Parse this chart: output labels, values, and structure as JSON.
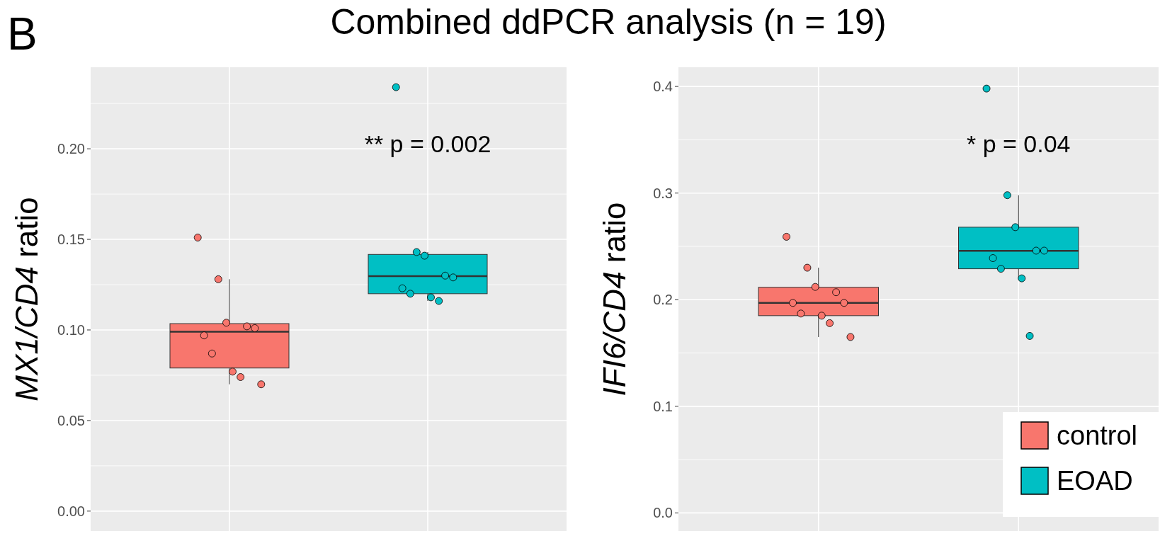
{
  "chart_data": [
    {
      "type": "box",
      "title": "Combined ddPCR analysis (n = 19)",
      "ylabel": "MX1/CD4 ratio",
      "categories": [
        null,
        null
      ],
      "tick_labels": "y",
      "ylim": [
        -0.011,
        0.245
      ],
      "yticks": [
        {
          "value": 0,
          "label": "0.00"
        },
        {
          "value": 0.05,
          "label": "0.05"
        },
        {
          "value": 0.1,
          "label": "0.10"
        },
        {
          "value": 0.15,
          "label": "0.15"
        },
        {
          "value": 0.2,
          "label": "0.20"
        }
      ],
      "grid": true,
      "legend": false,
      "annotations": [
        "B",
        "** p = 0.002"
      ],
      "series": [
        {
          "color": "#f8766d",
          "boxes": [
            {
              "low": 0.07,
              "q1": 0.079,
              "median": 0.099,
              "q3": 0.1035,
              "high": 0.128
            },
            null
          ]
        },
        {
          "color": "#00bfc4",
          "boxes": [
            null,
            {
              "low": 0.116,
              "q1": 0.12,
              "median": 0.1297,
              "q3": 0.1417,
              "high": 0.143
            }
          ]
        },
        {
          "type": "scatter",
          "colors": [
            "#f8766d",
            "#00bfc4"
          ],
          "values": [
            0.151,
            0.234
          ]
        },
        {
          "type": "scatter",
          "colors": [
            "#f8766d",
            "#00bfc4"
          ],
          "values": [
            0.128,
            0.143
          ]
        },
        {
          "type": "scatter",
          "colors": [
            "#f8766d",
            "#00bfc4"
          ],
          "values": [
            0.104,
            0.141
          ]
        },
        {
          "type": "scatter",
          "colors": [
            "#f8766d",
            "#00bfc4"
          ],
          "values": [
            0.102,
            0.13
          ]
        },
        {
          "type": "scatter",
          "colors": [
            "#f8766d",
            "#00bfc4"
          ],
          "values": [
            0.101,
            0.129
          ]
        },
        {
          "type": "scatter",
          "colors": [
            "#f8766d",
            "#00bfc4"
          ],
          "values": [
            0.097,
            0.123
          ]
        },
        {
          "type": "scatter",
          "colors": [
            "#f8766d",
            "#00bfc4"
          ],
          "values": [
            0.087,
            0.12
          ]
        },
        {
          "type": "scatter",
          "colors": [
            "#f8766d",
            "#00bfc4"
          ],
          "values": [
            0.077,
            0.118
          ]
        },
        {
          "type": "scatter",
          "colors": [
            "#f8766d",
            "#00bfc4"
          ],
          "values": [
            0.074,
            0.116
          ]
        },
        {
          "type": "scatter",
          "color": "#f8766d",
          "values": [
            0.07,
            null
          ]
        }
      ]
    },
    {
      "type": "box",
      "ylabel": "IFI6/CD4 ratio",
      "categories": [
        null,
        null
      ],
      "tick_labels": "y",
      "ylim": [
        -0.017,
        0.418
      ],
      "yticks": [
        {
          "value": 0,
          "label": "0.0"
        },
        {
          "value": 0.1,
          "label": "0.1"
        },
        {
          "value": 0.2,
          "label": "0.2"
        },
        {
          "value": 0.3,
          "label": "0.3"
        },
        {
          "value": 0.4,
          "label": "0.4"
        }
      ],
      "grid": true,
      "legend": "bottom right",
      "annotations": [
        "* p = 0.04"
      ],
      "series": [
        {
          "name": "control",
          "color": "#f8766d",
          "boxes": [
            {
              "low": 0.165,
              "q1": 0.185,
              "median": 0.197,
              "q3": 0.2116,
              "high": 0.23
            },
            null
          ]
        },
        {
          "name": "EOAD",
          "color": "#00bfc4",
          "boxes": [
            null,
            {
              "low": 0.22,
              "q1": 0.229,
              "median": 0.2458,
              "q3": 0.268,
              "high": 0.298
            }
          ]
        },
        {
          "type": "scatter",
          "colors": [
            "#f8766d",
            "#00bfc4"
          ],
          "values": [
            0.259,
            0.398
          ]
        },
        {
          "type": "scatter",
          "colors": [
            "#f8766d",
            "#00bfc4"
          ],
          "values": [
            0.23,
            0.298
          ]
        },
        {
          "type": "scatter",
          "colors": [
            "#f8766d",
            "#00bfc4"
          ],
          "values": [
            0.212,
            0.268
          ]
        },
        {
          "type": "scatter",
          "colors": [
            "#f8766d",
            "#00bfc4"
          ],
          "values": [
            0.207,
            0.246
          ]
        },
        {
          "type": "scatter",
          "colors": [
            "#f8766d",
            "#00bfc4"
          ],
          "values": [
            0.197,
            0.246
          ]
        },
        {
          "type": "scatter",
          "colors": [
            "#f8766d",
            "#00bfc4"
          ],
          "values": [
            0.197,
            0.239
          ]
        },
        {
          "type": "scatter",
          "colors": [
            "#f8766d",
            "#00bfc4"
          ],
          "values": [
            0.187,
            0.229
          ]
        },
        {
          "type": "scatter",
          "colors": [
            "#f8766d",
            "#00bfc4"
          ],
          "values": [
            0.185,
            0.22
          ]
        },
        {
          "type": "scatter",
          "colors": [
            "#f8766d",
            "#00bfc4"
          ],
          "values": [
            0.178,
            0.166
          ]
        },
        {
          "type": "scatter",
          "color": "#f8766d",
          "values": [
            0.165,
            null
          ]
        }
      ]
    }
  ]
}
